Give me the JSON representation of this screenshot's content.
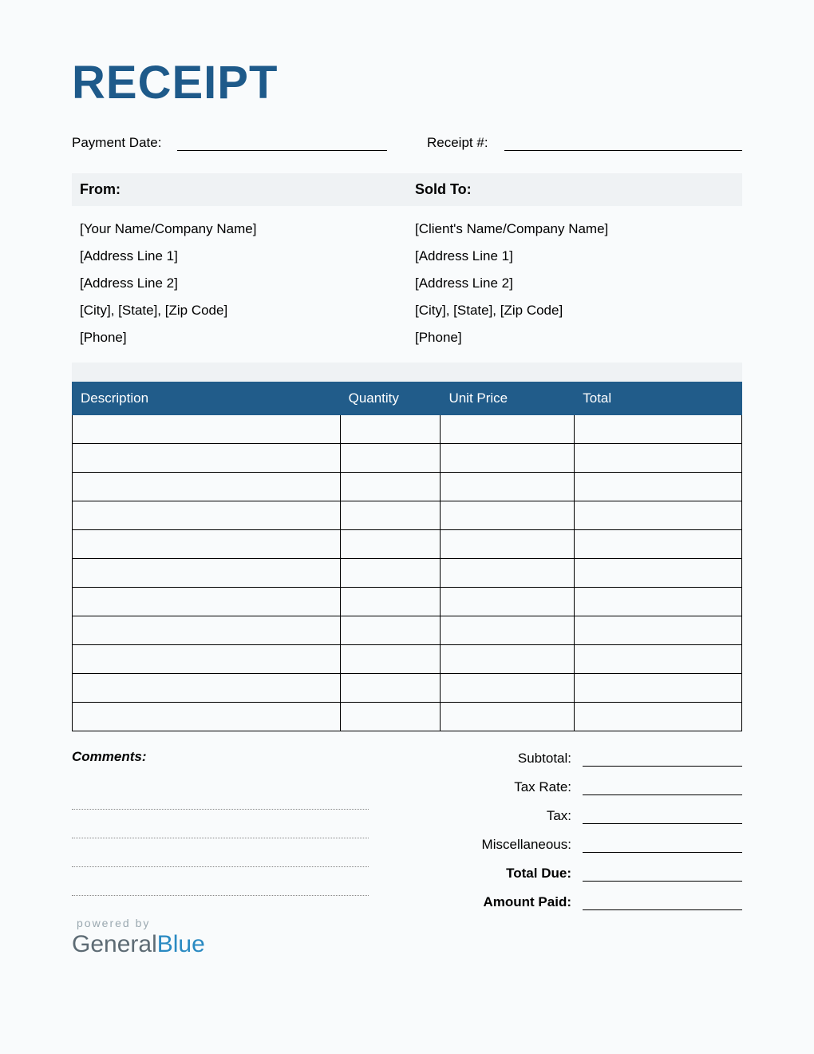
{
  "title": "RECEIPT",
  "colors": {
    "title": "#1e5a8a",
    "header_bg": "#eff2f4",
    "table_header_bg": "#215c8a",
    "table_header_text": "#ffffff",
    "border": "#000000",
    "dotted": "#888888",
    "powered_text": "#9aa8b0",
    "logo_gray": "#5d6b74",
    "logo_blue": "#2a8ac2"
  },
  "meta": {
    "payment_date_label": "Payment Date:",
    "receipt_no_label": "Receipt #:"
  },
  "from": {
    "header": "From:",
    "lines": [
      "[Your Name/Company Name]",
      "[Address Line 1]",
      "[Address Line 2]",
      "[City], [State], [Zip Code]",
      "[Phone]"
    ]
  },
  "sold_to": {
    "header": "Sold To:",
    "lines": [
      "[Client's Name/Company Name]",
      "[Address Line 1]",
      "[Address Line 2]",
      "[City], [State], [Zip Code]",
      "[Phone]"
    ]
  },
  "table": {
    "columns": [
      "Description",
      "Quantity",
      "Unit Price",
      "Total"
    ],
    "row_count": 11
  },
  "comments_label": "Comments:",
  "comment_line_count": 4,
  "totals": [
    {
      "label": "Subtotal:",
      "bold": false
    },
    {
      "label": "Tax Rate:",
      "bold": false
    },
    {
      "label": "Tax:",
      "bold": false
    },
    {
      "label": "Miscellaneous:",
      "bold": false
    },
    {
      "label": "Total Due:",
      "bold": true
    },
    {
      "label": "Amount Paid:",
      "bold": true
    }
  ],
  "footer": {
    "powered": "powered by",
    "logo_part1": "General",
    "logo_part2": "Blue"
  }
}
